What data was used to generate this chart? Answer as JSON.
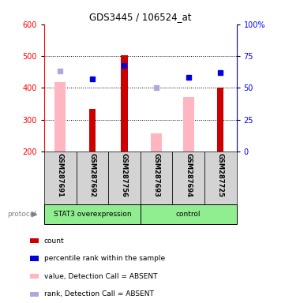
{
  "title": "GDS3445 / 106524_at",
  "samples": [
    "GSM287691",
    "GSM287692",
    "GSM287756",
    "GSM287693",
    "GSM287694",
    "GSM287725"
  ],
  "groups": [
    "STAT3 overexpression",
    "control"
  ],
  "group_split": 3,
  "bar_color_red": "#CC0000",
  "bar_color_pink": "#FFB6C1",
  "marker_blue_dark": "#0000DD",
  "marker_blue_light": "#AAAADD",
  "count_values": [
    null,
    335,
    503,
    null,
    null,
    400
  ],
  "value_absent": [
    418,
    null,
    null,
    258,
    372,
    null
  ],
  "percentile_rank": [
    null,
    428,
    470,
    null,
    432,
    447
  ],
  "rank_absent": [
    452,
    null,
    null,
    400,
    null,
    null
  ],
  "ylim_left": [
    200,
    600
  ],
  "ylim_right": [
    0,
    100
  ],
  "yticks_left": [
    200,
    300,
    400,
    500,
    600
  ],
  "yticks_right": [
    0,
    25,
    50,
    75,
    100
  ],
  "ytick_labels_right": [
    "0",
    "25",
    "50",
    "75",
    "100%"
  ],
  "protocol_label": "protocol",
  "legend_labels": [
    "count",
    "percentile rank within the sample",
    "value, Detection Call = ABSENT",
    "rank, Detection Call = ABSENT"
  ],
  "legend_colors": [
    "#CC0000",
    "#0000DD",
    "#FFB6C1",
    "#AAAADD"
  ]
}
